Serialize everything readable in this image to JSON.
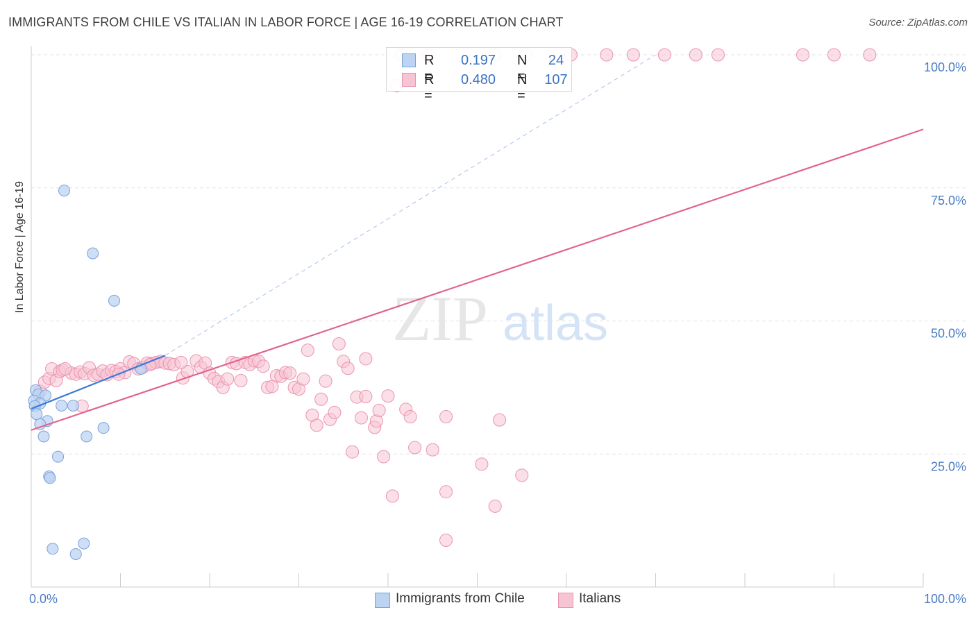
{
  "header": {
    "title": "IMMIGRANTS FROM CHILE VS ITALIAN IN LABOR FORCE | AGE 16-19 CORRELATION CHART",
    "source": "Source: ZipAtlas.com"
  },
  "watermark": {
    "zip": "ZIP",
    "atlas": "atlas"
  },
  "legend": {
    "rows": [
      {
        "r_label": "R =",
        "r_value": "0.197",
        "n_label": "N =",
        "n_value": "24"
      },
      {
        "r_label": "R =",
        "r_value": "0.480",
        "n_label": "N =",
        "n_value": "107"
      }
    ]
  },
  "bottom_legend": {
    "items": [
      {
        "label": "Immigrants from Chile"
      },
      {
        "label": "Italians"
      }
    ]
  },
  "colors": {
    "blue_fill": "#bcd3f2",
    "blue_stroke": "#7aa2dc",
    "blue_line": "#3a7ad6",
    "pink_fill": "#f7c4d4",
    "pink_stroke": "#ea92b0",
    "pink_line": "#e2648e",
    "axis_text": "#4a7cc4",
    "grid": "#e3e3e3"
  },
  "chart_data": {
    "type": "scatter",
    "title": "IMMIGRANTS FROM CHILE VS ITALIAN IN LABOR FORCE | AGE 16-19 CORRELATION CHART",
    "xlabel": "",
    "ylabel": "In Labor Force | Age 16-19",
    "xlim": [
      0,
      100
    ],
    "ylim": [
      0,
      100
    ],
    "x_tick_labels": [
      "0.0%",
      "100.0%"
    ],
    "y_ticks": [
      25,
      50,
      75,
      100
    ],
    "y_tick_labels": [
      "25.0%",
      "50.0%",
      "75.0%",
      "100.0%"
    ],
    "grid": true,
    "series": [
      {
        "name": "Immigrants from Chile",
        "r": 0.197,
        "n": 24,
        "trend": {
          "x": [
            0,
            15
          ],
          "y": [
            33.5,
            43.5
          ]
        },
        "trend_extension": {
          "x": [
            15,
            70
          ],
          "y": [
            43.5,
            100
          ]
        },
        "points": [
          [
            3.7,
            74.5
          ],
          [
            6.9,
            62.7
          ],
          [
            9.3,
            53.8
          ],
          [
            0.5,
            37.0
          ],
          [
            0.8,
            36.2
          ],
          [
            1.6,
            36.0
          ],
          [
            0.3,
            35.0
          ],
          [
            1.0,
            34.5
          ],
          [
            0.4,
            34.0
          ],
          [
            4.7,
            34.1
          ],
          [
            3.4,
            34.1
          ],
          [
            0.6,
            32.5
          ],
          [
            1.8,
            31.2
          ],
          [
            1.0,
            30.6
          ],
          [
            1.4,
            28.3
          ],
          [
            6.2,
            28.3
          ],
          [
            8.1,
            29.9
          ],
          [
            3.0,
            24.5
          ],
          [
            2.0,
            20.8
          ],
          [
            2.1,
            20.5
          ],
          [
            2.4,
            7.2
          ],
          [
            5.0,
            6.2
          ],
          [
            5.9,
            8.2
          ],
          [
            12.3,
            41.0
          ]
        ]
      },
      {
        "name": "Italians",
        "r": 0.48,
        "n": 107,
        "trend": {
          "x": [
            0,
            100
          ],
          "y": [
            29.5,
            86.0
          ]
        },
        "points": [
          [
            41.5,
            100.0
          ],
          [
            44.5,
            100.0
          ],
          [
            52.0,
            100.0
          ],
          [
            55.5,
            100.0
          ],
          [
            60.5,
            100.0
          ],
          [
            64.5,
            100.0
          ],
          [
            67.5,
            100.0
          ],
          [
            71.0,
            100.0
          ],
          [
            74.5,
            100.0
          ],
          [
            77.0,
            100.0
          ],
          [
            86.5,
            100.0
          ],
          [
            90.0,
            100.0
          ],
          [
            94.0,
            100.0
          ],
          [
            41.0,
            94.2
          ],
          [
            1.0,
            36.8
          ],
          [
            1.5,
            38.5
          ],
          [
            2.0,
            39.2
          ],
          [
            2.3,
            41.0
          ],
          [
            2.8,
            38.8
          ],
          [
            3.2,
            40.5
          ],
          [
            3.5,
            40.8
          ],
          [
            4.5,
            40.2
          ],
          [
            5.0,
            40.0
          ],
          [
            5.5,
            40.4
          ],
          [
            6.0,
            40.1
          ],
          [
            6.5,
            41.2
          ],
          [
            7.0,
            39.8
          ],
          [
            7.5,
            40.0
          ],
          [
            8.0,
            40.6
          ],
          [
            8.5,
            39.9
          ],
          [
            9.0,
            40.7
          ],
          [
            9.5,
            40.5
          ],
          [
            10.0,
            41.0
          ],
          [
            10.5,
            40.3
          ],
          [
            11.0,
            42.3
          ],
          [
            11.5,
            42.0
          ],
          [
            12.0,
            41.0
          ],
          [
            12.5,
            41.3
          ],
          [
            13.0,
            42.1
          ],
          [
            13.5,
            42.0
          ],
          [
            14.0,
            42.2
          ],
          [
            14.5,
            42.4
          ],
          [
            15.0,
            42.1
          ],
          [
            15.5,
            42.0
          ],
          [
            16.0,
            41.8
          ],
          [
            17.0,
            39.3
          ],
          [
            17.5,
            40.5
          ],
          [
            18.5,
            42.5
          ],
          [
            19.0,
            41.3
          ],
          [
            19.5,
            42.1
          ],
          [
            20.0,
            40.2
          ],
          [
            20.5,
            39.2
          ],
          [
            21.0,
            38.6
          ],
          [
            21.5,
            37.5
          ],
          [
            22.0,
            39.1
          ],
          [
            22.5,
            42.2
          ],
          [
            23.0,
            42.0
          ],
          [
            23.5,
            38.8
          ],
          [
            24.0,
            42.2
          ],
          [
            24.5,
            41.8
          ],
          [
            25.0,
            42.5
          ],
          [
            25.5,
            42.4
          ],
          [
            26.0,
            41.5
          ],
          [
            26.5,
            37.5
          ],
          [
            27.0,
            37.7
          ],
          [
            27.5,
            39.7
          ],
          [
            28.0,
            39.6
          ],
          [
            28.5,
            40.3
          ],
          [
            29.0,
            40.2
          ],
          [
            29.5,
            37.5
          ],
          [
            30.0,
            37.2
          ],
          [
            30.5,
            39.1
          ],
          [
            31.0,
            44.5
          ],
          [
            31.5,
            32.3
          ],
          [
            32.0,
            30.4
          ],
          [
            32.5,
            35.3
          ],
          [
            33.0,
            38.7
          ],
          [
            33.5,
            31.5
          ],
          [
            34.0,
            32.8
          ],
          [
            34.5,
            45.7
          ],
          [
            35.0,
            42.4
          ],
          [
            35.5,
            41.1
          ],
          [
            36.0,
            25.4
          ],
          [
            36.5,
            35.7
          ],
          [
            37.0,
            31.8
          ],
          [
            37.5,
            35.8
          ],
          [
            37.5,
            42.9
          ],
          [
            38.5,
            30.0
          ],
          [
            38.7,
            31.2
          ],
          [
            39.0,
            33.2
          ],
          [
            39.5,
            24.5
          ],
          [
            40.0,
            35.9
          ],
          [
            40.5,
            17.1
          ],
          [
            42.0,
            33.4
          ],
          [
            42.5,
            32.0
          ],
          [
            43.0,
            26.2
          ],
          [
            45.0,
            25.8
          ],
          [
            46.5,
            32.0
          ],
          [
            46.5,
            17.9
          ],
          [
            46.5,
            8.8
          ],
          [
            50.5,
            23.1
          ],
          [
            52.0,
            15.2
          ],
          [
            52.5,
            31.4
          ],
          [
            55.0,
            21.0
          ],
          [
            5.7,
            34.0
          ],
          [
            3.8,
            41.0
          ],
          [
            9.8,
            40.0
          ],
          [
            13.3,
            41.8
          ],
          [
            16.8,
            42.2
          ]
        ]
      }
    ]
  }
}
